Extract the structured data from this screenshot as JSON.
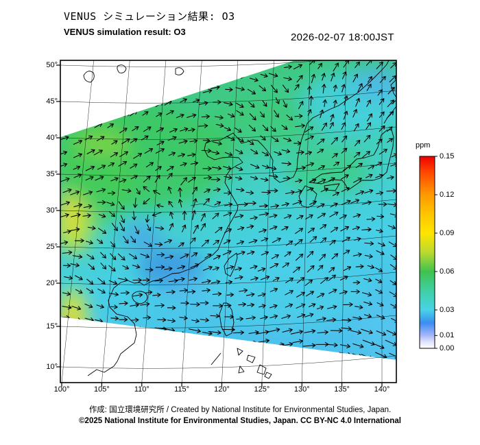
{
  "header": {
    "title_jp": "VENUS シミュレーション結果: O3",
    "title_en": "VENUS simulation result: O3",
    "timestamp": "2026-02-07 18:00JST"
  },
  "map": {
    "x_ticks": [
      "100°",
      "105°",
      "110°",
      "115°",
      "120°",
      "125°",
      "130°",
      "135°",
      "140°"
    ],
    "y_ticks": [
      "50°",
      "45°",
      "40°",
      "35°",
      "30°",
      "25°",
      "20°",
      "15°",
      "10°"
    ]
  },
  "colorbar": {
    "unit": "ppm",
    "tick_labels": [
      "0.15",
      "0.12",
      "0.09",
      "0.06",
      "0.03",
      "0.01",
      "0.00"
    ],
    "tick_values": [
      0.15,
      0.12,
      0.09,
      0.06,
      0.03,
      0.01,
      0.0
    ],
    "max": 0.15,
    "colors_top_to_bottom": [
      "#ee0000",
      "#ff9900",
      "#ffe400",
      "#3fc24f",
      "#49d2e8",
      "#a9b6fa",
      "#ffffff"
    ]
  },
  "footer": {
    "credit": "作成: 国立環境研究所 / Created by National Institute for Environmental Studies, Japan.",
    "copyright": "©2025 National Institute for Environmental Studies, Japan. CC BY-NC 4.0 International"
  },
  "chart_data": {
    "type": "heatmap",
    "title": "VENUS simulation result: O3",
    "variable": "O3",
    "unit": "ppm",
    "datetime": "2026-02-07 18:00JST",
    "region": "East Asia",
    "lon_range": [
      100,
      141.8
    ],
    "lat_range": [
      8,
      50
    ],
    "lon_ticks": [
      100,
      105,
      110,
      115,
      120,
      125,
      130,
      135,
      140
    ],
    "lat_ticks": [
      10,
      15,
      20,
      25,
      30,
      35,
      40,
      45,
      50
    ],
    "colorbar_ticks": [
      0.0,
      0.01,
      0.03,
      0.06,
      0.09,
      0.12,
      0.15
    ],
    "colorbar_colors_low_to_high": [
      "#ffffff",
      "#a9b6fa",
      "#49d2e8",
      "#3fc24f",
      "#ffe400",
      "#ff9900",
      "#ee0000"
    ],
    "overlay": "wind vector arrows on rotated model domain; domain edges cut white wedges at top-left and bottom of frame",
    "field_summary": "O3 mostly 0.03-0.07 ppm: green (~0.05-0.06) over NW China, Mongolia border and Sea of Japan; cyan (~0.03-0.04) over SE China, western Pacific and top-right corner; yellow maxima (~0.08-0.09) along left edge near 102E/28N and 103E/16N with small orange spot; blue minima (~0.02) near 112E/22N and 108E/26N; cyclonic wind swirls near 108E/27N and 130E/39N, strong easterly-flow arrows along the southern domain edge"
  }
}
